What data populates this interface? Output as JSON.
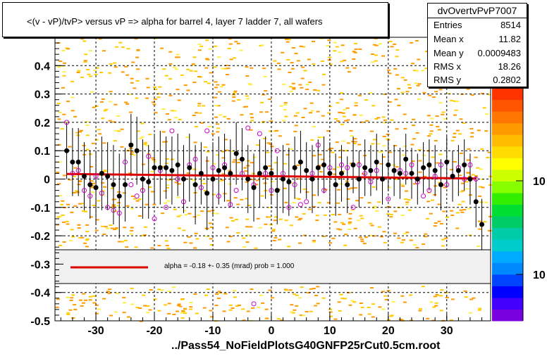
{
  "chart_data": {
    "type": "scatter",
    "title": "<(v - vP)/tvP> versus   vP => alpha for barrel 4, layer 7 ladder 7, all wafers",
    "xlabel": "../Pass54_NoFieldPlotsG40GNFP25rCut0.5cm.root",
    "ylabel": "",
    "xlim": [
      -37,
      37.5
    ],
    "ylim": [
      -0.5,
      0.5
    ],
    "x_ticks": [
      -30,
      -20,
      -10,
      0,
      10,
      20,
      30
    ],
    "y_ticks": [
      -0.5,
      -0.4,
      -0.3,
      -0.2,
      -0.1,
      0,
      0.1,
      0.2,
      0.3,
      0.4
    ],
    "grid": true,
    "colorbar_labels": [
      "10",
      "10"
    ],
    "stats": {
      "name": "dvOvertvPvP7007",
      "rows": [
        {
          "label": "Entries",
          "value": "8514"
        },
        {
          "label": "Mean x",
          "value": "11.82"
        },
        {
          "label": "Mean y",
          "value": "0.0009483"
        },
        {
          "label": "RMS x",
          "value": "18.26"
        },
        {
          "label": "RMS y",
          "value": "0.2802"
        }
      ]
    },
    "fit": {
      "label": "alpha =   -0.18 +-  0.35 (mrad) prob = 1.000",
      "color": "#dd0000",
      "line": [
        [
          -35,
          0.018
        ],
        [
          35,
          0.002
        ]
      ]
    },
    "series": [
      {
        "marker": "black-filled-circle",
        "color": "#000000",
        "points": [
          [
            -35,
            0.1,
            0.1
          ],
          [
            -34,
            0.06,
            0.12
          ],
          [
            -33,
            0.06,
            0.12
          ],
          [
            -32,
            0.01,
            0.12
          ],
          [
            -31,
            -0.02,
            0.12
          ],
          [
            -30,
            -0.03,
            0.13
          ],
          [
            -29,
            0.02,
            0.13
          ],
          [
            -28,
            0.01,
            0.12
          ],
          [
            -27,
            -0.02,
            0.14
          ],
          [
            -26,
            -0.06,
            0.15
          ],
          [
            -25,
            -0.02,
            0.13
          ],
          [
            -24,
            0.12,
            0.11
          ],
          [
            -23,
            0.1,
            0.12
          ],
          [
            -22,
            0.0,
            0.14
          ],
          [
            -21,
            -0.01,
            0.13
          ],
          [
            -20,
            0.04,
            0.12
          ],
          [
            -19,
            0.04,
            0.13
          ],
          [
            -18,
            0.04,
            0.11
          ],
          [
            -17,
            0.03,
            0.12
          ],
          [
            -16,
            0.05,
            0.11
          ],
          [
            -15,
            0.0,
            0.12
          ],
          [
            -14,
            0.04,
            0.12
          ],
          [
            -13,
            -0.02,
            0.14
          ],
          [
            -12,
            0.02,
            0.11
          ],
          [
            -11,
            -0.05,
            0.13
          ],
          [
            -10,
            0.0,
            0.13
          ],
          [
            -9,
            0.03,
            0.12
          ],
          [
            -8,
            0.04,
            0.12
          ],
          [
            -7,
            0.02,
            0.12
          ],
          [
            -6,
            0.09,
            0.11
          ],
          [
            -5,
            0.07,
            0.11
          ],
          [
            -4,
            0.0,
            0.12
          ],
          [
            -3,
            -0.03,
            0.12
          ],
          [
            -2,
            0.02,
            0.12
          ],
          [
            -1,
            0.04,
            0.11
          ],
          [
            0,
            0.02,
            0.11
          ],
          [
            1,
            -0.04,
            0.12
          ],
          [
            2,
            0.0,
            0.12
          ],
          [
            3,
            -0.01,
            0.12
          ],
          [
            4,
            0.04,
            0.11
          ],
          [
            5,
            0.06,
            0.11
          ],
          [
            6,
            0.03,
            0.1
          ],
          [
            7,
            0.0,
            0.12
          ],
          [
            8,
            0.04,
            0.1
          ],
          [
            9,
            0.05,
            0.1
          ],
          [
            10,
            0.02,
            0.11
          ],
          [
            11,
            -0.02,
            0.11
          ],
          [
            12,
            0.02,
            0.1
          ],
          [
            13,
            -0.02,
            0.1
          ],
          [
            14,
            0.05,
            0.1
          ],
          [
            15,
            0.0,
            0.1
          ],
          [
            16,
            0.04,
            0.1
          ],
          [
            17,
            0.03,
            0.09
          ],
          [
            18,
            0.06,
            0.1
          ],
          [
            19,
            0.0,
            0.09
          ],
          [
            20,
            0.05,
            0.09
          ],
          [
            21,
            0.03,
            0.09
          ],
          [
            22,
            0.02,
            0.09
          ],
          [
            23,
            0.07,
            0.09
          ],
          [
            24,
            0.02,
            0.09
          ],
          [
            25,
            0.0,
            0.09
          ],
          [
            26,
            0.04,
            0.09
          ],
          [
            27,
            0.05,
            0.09
          ],
          [
            28,
            0.03,
            0.09
          ],
          [
            29,
            -0.02,
            0.09
          ],
          [
            30,
            0.06,
            0.09
          ],
          [
            31,
            0.01,
            0.09
          ],
          [
            32,
            0.03,
            0.09
          ],
          [
            33,
            0.05,
            0.09
          ],
          [
            34,
            0.0,
            0.09
          ],
          [
            35,
            -0.08,
            0.09
          ],
          [
            36,
            -0.16,
            0.09
          ]
        ]
      },
      {
        "marker": "magenta-open-circle",
        "color": "#cc00cc",
        "points": [
          [
            -35,
            0.2
          ],
          [
            -33,
            0.03
          ],
          [
            -31,
            -0.06
          ],
          [
            -29,
            -0.05
          ],
          [
            -27,
            -0.11
          ],
          [
            -25,
            0.06
          ],
          [
            -23,
            -0.06
          ],
          [
            -21,
            0.08
          ],
          [
            -19,
            0.03
          ],
          [
            -18,
            -0.1
          ],
          [
            -17,
            0.17
          ],
          [
            -15,
            -0.08
          ],
          [
            -13,
            0.07
          ],
          [
            -11,
            0.17
          ],
          [
            -9,
            -0.06
          ],
          [
            -7,
            -0.09
          ],
          [
            -5,
            0.02
          ],
          [
            -3,
            -0.02
          ],
          [
            -1,
            0.02
          ],
          [
            1,
            0.1
          ],
          [
            3,
            -0.1
          ],
          [
            5,
            -0.09
          ],
          [
            7,
            0.02
          ],
          [
            8,
            0.12
          ],
          [
            10,
            0.04
          ],
          [
            12,
            0.05
          ],
          [
            14,
            -0.1
          ],
          [
            16,
            0.02
          ],
          [
            18,
            0.03
          ],
          [
            20,
            -0.07
          ],
          [
            22,
            0.03
          ],
          [
            24,
            0.05
          ],
          [
            26,
            -0.06
          ],
          [
            28,
            0.01
          ],
          [
            30,
            -0.02
          ],
          [
            32,
            0.04
          ],
          [
            34,
            0.05
          ],
          [
            -4,
            0.18
          ],
          [
            -2,
            0.16
          ],
          [
            -6,
            -0.04
          ],
          [
            0,
            -0.04
          ],
          [
            2,
            0.02
          ],
          [
            4,
            -0.02
          ],
          [
            6,
            -0.08
          ],
          [
            9,
            -0.04
          ],
          [
            11,
            -0.02
          ],
          [
            13,
            0.04
          ],
          [
            15,
            0.05
          ],
          [
            17,
            -0.01
          ],
          [
            19,
            0.0
          ],
          [
            21,
            0.03
          ],
          [
            23,
            0.02
          ],
          [
            25,
            -0.01
          ],
          [
            27,
            -0.04
          ],
          [
            29,
            0.05
          ],
          [
            31,
            0.01
          ],
          [
            33,
            0.0
          ],
          [
            35,
            0.0
          ],
          [
            -20,
            -0.14
          ],
          [
            -22,
            -0.04
          ],
          [
            -26,
            -0.12
          ],
          [
            -28,
            -0.1
          ],
          [
            -30,
            0.01
          ],
          [
            -32,
            -0.04
          ],
          [
            -34,
            0.02
          ],
          [
            -24,
            -0.02
          ],
          [
            -16,
            0.0
          ],
          [
            -14,
            0.05
          ],
          [
            -12,
            -0.03
          ],
          [
            -10,
            0.04
          ],
          [
            -8,
            0.05
          ],
          [
            -3,
            -0.44
          ]
        ]
      }
    ]
  }
}
